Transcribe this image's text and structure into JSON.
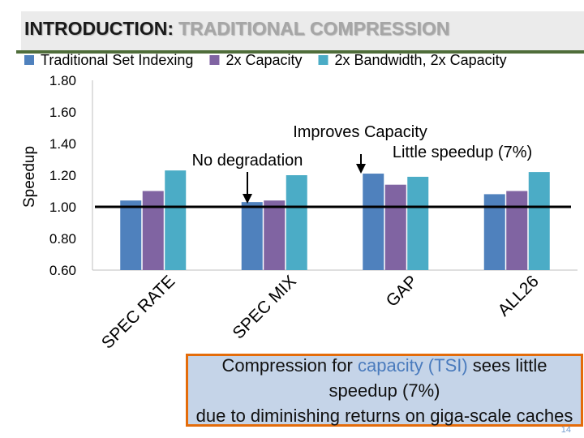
{
  "slide": {
    "title_main": "INTRODUCTION:",
    "title_accent": "TRADITIONAL COMPRESSION",
    "callout": {
      "part1": "Compression for ",
      "highlight": "capacity (TSI)",
      "part2": " sees little speedup (7%)",
      "line2": "due to diminishing returns on giga-scale caches"
    },
    "page_number": "14",
    "colors": {
      "accent_strip": "#4f6d3a",
      "callout_border": "#e46c0a",
      "callout_bg": "#c5d4e8"
    }
  },
  "chart_data": {
    "type": "bar",
    "ylabel": "Speedup",
    "xlabel": "",
    "ylim": [
      0.6,
      1.8
    ],
    "yticks": [
      "0.60",
      "0.80",
      "1.00",
      "1.20",
      "1.40",
      "1.60",
      "1.80"
    ],
    "grid": false,
    "legend_position": "top",
    "categories": [
      "SPEC RATE",
      "SPEC MIX",
      "GAP",
      "ALL26"
    ],
    "series": [
      {
        "name": "Traditional Set Indexing",
        "color": "#4f81bd",
        "values": [
          1.04,
          1.03,
          1.21,
          1.08
        ]
      },
      {
        "name": "2x Capacity",
        "color": "#8064a2",
        "values": [
          1.1,
          1.04,
          1.14,
          1.1
        ]
      },
      {
        "name": "2x Bandwidth, 2x Capacity",
        "color": "#4bacc6",
        "values": [
          1.23,
          1.2,
          1.19,
          1.22
        ]
      }
    ],
    "reference_line": 1.0,
    "annotations": [
      {
        "text": "No degradation",
        "category": "SPEC MIX"
      },
      {
        "text": "Improves Capacity",
        "category": "GAP"
      },
      {
        "text": "Little speedup (7%)",
        "category": "ALL26"
      }
    ]
  }
}
